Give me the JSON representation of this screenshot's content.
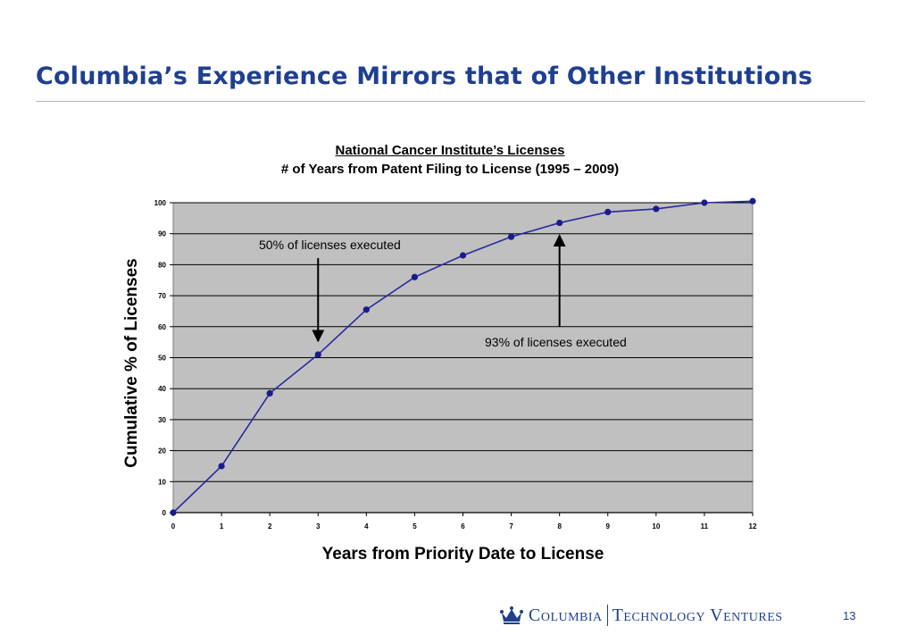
{
  "slide": {
    "title": "Columbia’s Experience Mirrors that of Other Institutions",
    "page_number": "13"
  },
  "footer": {
    "logo_part1": "Columbia",
    "logo_part2": "Technology Ventures"
  },
  "colors": {
    "title": "#1f3f8f",
    "line": "#2a2aa0",
    "marker": "#1b1b8c",
    "plot_bg": "#c0c0c0"
  },
  "chart_data": {
    "type": "line",
    "title": "National Cancer Institute’s Licenses",
    "subtitle": "# of Years from Patent Filing to License (1995 – 2009)",
    "xlabel": "Years from Priority Date to License",
    "ylabel": "Cumulative % of Licenses",
    "x": [
      0,
      1,
      2,
      3,
      4,
      5,
      6,
      7,
      8,
      9,
      10,
      11,
      12
    ],
    "series": [
      {
        "values": [
          0,
          15,
          38.5,
          51,
          65.5,
          76,
          83,
          89,
          93.5,
          97,
          98,
          100,
          100.5
        ]
      }
    ],
    "xlim": [
      0,
      12
    ],
    "ylim": [
      0,
      100
    ],
    "xticks": [
      "0",
      "1",
      "2",
      "3",
      "4",
      "5",
      "6",
      "7",
      "8",
      "9",
      "10",
      "11",
      "12"
    ],
    "yticks": [
      "0",
      "10",
      "20",
      "30",
      "40",
      "50",
      "60",
      "70",
      "80",
      "90",
      "100"
    ],
    "grid": true,
    "annotations": [
      {
        "text": "50% of licenses executed",
        "x": 3,
        "y": 51,
        "arrow": "down"
      },
      {
        "text": "93% of licenses executed",
        "x": 8,
        "y": 93.5,
        "arrow": "up"
      }
    ]
  }
}
